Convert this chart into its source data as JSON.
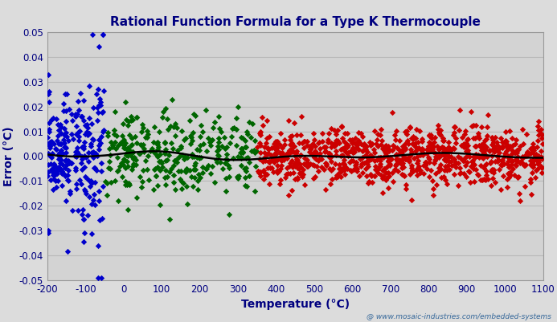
{
  "title": "Rational Function Formula for a Type K Thermocouple",
  "xlabel": "Temperature (°C)",
  "ylabel": "Error (°C)",
  "xlim": [
    -200,
    1100
  ],
  "ylim": [
    -0.05,
    0.05
  ],
  "xticks": [
    -200,
    -100,
    0,
    100,
    200,
    300,
    400,
    500,
    600,
    700,
    800,
    900,
    1000,
    1100
  ],
  "yticks": [
    -0.05,
    -0.04,
    -0.03,
    -0.02,
    -0.01,
    0.0,
    0.01,
    0.02,
    0.03,
    0.04,
    0.05
  ],
  "blue_color": "#0000CC",
  "green_color": "#006600",
  "red_color": "#CC0000",
  "line_color": "#000000",
  "outer_bg": "#DCDCDC",
  "plot_bg": "#D3D3D3",
  "title_color": "#000080",
  "axis_label_color": "#000080",
  "tick_color": "#000080",
  "grid_color": "#B8B8B8",
  "watermark": "@ www.mosaic-industries.com/embedded-systems",
  "title_fontsize": 11,
  "label_fontsize": 10,
  "tick_fontsize": 8.5,
  "marker_size": 14,
  "line_width": 1.8
}
